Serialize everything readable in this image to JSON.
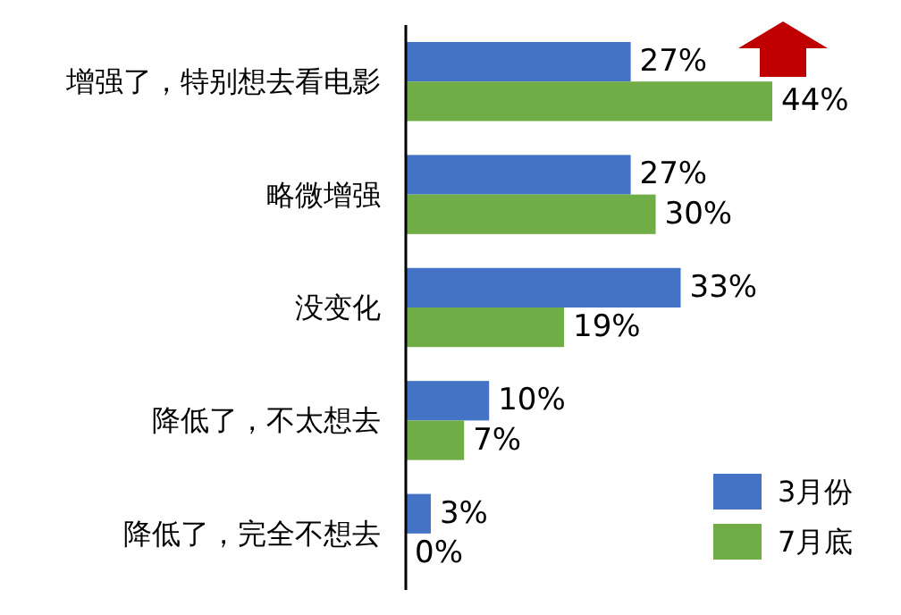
{
  "chart_data": {
    "type": "bar",
    "orientation": "horizontal",
    "categories": [
      "增强了，特别想去看电影",
      "略微增强",
      "没变化",
      "降低了，不太想去",
      "降低了，完全不想去"
    ],
    "series": [
      {
        "name": "3月份",
        "color": "#4472c4",
        "values": [
          27,
          27,
          33,
          10,
          3
        ],
        "value_labels": [
          "27%",
          "27%",
          "33%",
          "10%",
          "3%"
        ]
      },
      {
        "name": "7月底",
        "color": "#70ad47",
        "values": [
          44,
          30,
          19,
          7,
          0
        ],
        "value_labels": [
          "44%",
          "30%",
          "19%",
          "7%",
          "0%"
        ]
      }
    ],
    "legend": "bottom right"
  }
}
